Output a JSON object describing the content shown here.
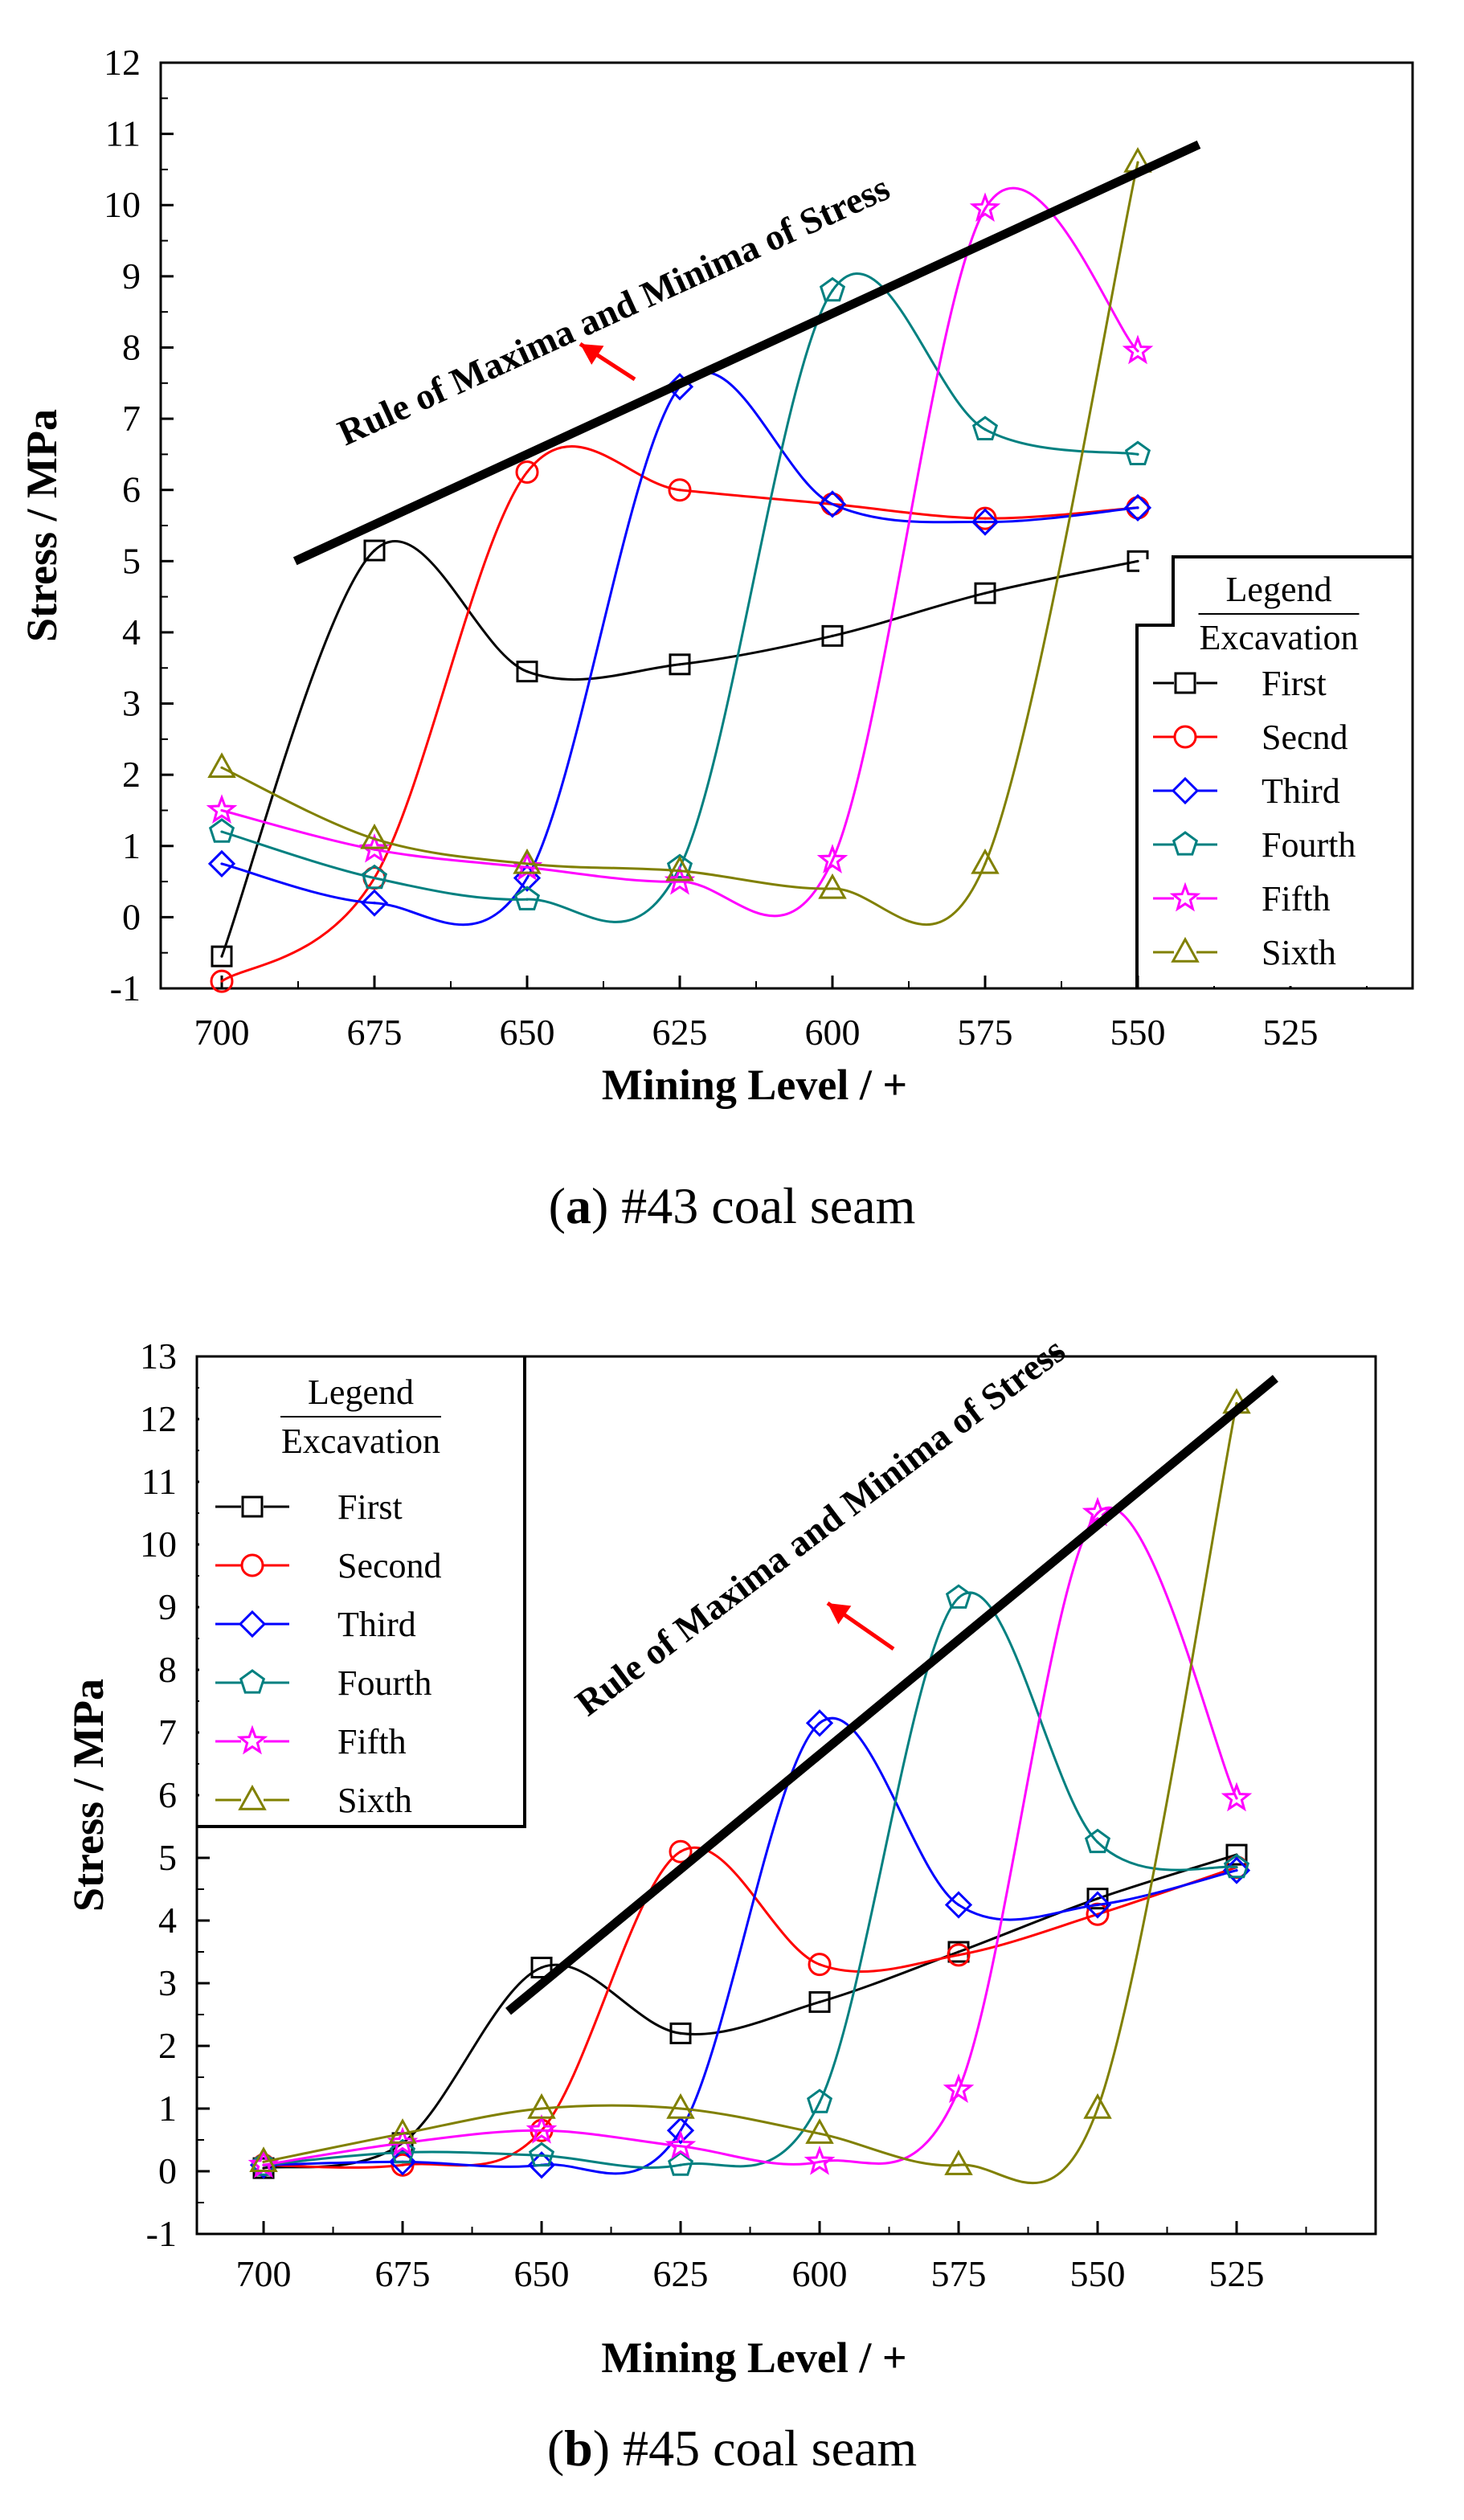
{
  "colors": {
    "First": "#000000",
    "Second": "#ff0000",
    "Third": "#0000ff",
    "Fourth": "#008080",
    "Fifth": "#ff00ff",
    "Sixth": "#808000",
    "arrow": "#ff0000"
  },
  "chart_data": [
    {
      "type": "line",
      "panel": "a",
      "caption_prefix": "(",
      "caption_letter": "a",
      "caption_rest": ") #43 coal seam",
      "xlabel": "Mining Level / +",
      "ylabel": "Stress  / MPa",
      "xlim": [
        710,
        505
      ],
      "ylim": [
        -1,
        12
      ],
      "xticks": [
        700,
        675,
        650,
        625,
        600,
        575,
        550,
        525
      ],
      "yticks": [
        -1,
        0,
        1,
        2,
        3,
        4,
        5,
        6,
        7,
        8,
        9,
        10,
        11,
        12
      ],
      "trend_label": "Rule of Maxima and Minima of Stress",
      "trend_line": {
        "x": [
          688,
          540
        ],
        "y": [
          5.0,
          10.85
        ]
      },
      "legend_position": "bottom-right",
      "legend_title": "Legend",
      "legend_subtitle": "Excavation",
      "series": [
        {
          "name": "First",
          "label": "First",
          "marker": "square",
          "x": [
            700,
            675,
            650,
            625,
            600,
            575,
            550
          ],
          "values": [
            -0.55,
            5.15,
            3.45,
            3.55,
            3.95,
            4.55,
            5.0
          ]
        },
        {
          "name": "Second",
          "label": "Secnd",
          "marker": "circle",
          "x": [
            700,
            675,
            650,
            625,
            600,
            575,
            550
          ],
          "values": [
            -0.9,
            0.55,
            6.25,
            6.0,
            5.8,
            5.6,
            5.75
          ]
        },
        {
          "name": "Third",
          "label": "Third",
          "marker": "diamond",
          "x": [
            700,
            675,
            650,
            625,
            600,
            575,
            550
          ],
          "values": [
            0.75,
            0.2,
            0.55,
            7.45,
            5.8,
            5.55,
            5.75
          ]
        },
        {
          "name": "Fourth",
          "label": "Fourth",
          "marker": "pentagon",
          "x": [
            700,
            675,
            650,
            625,
            600,
            575,
            550
          ],
          "values": [
            1.2,
            0.55,
            0.25,
            0.7,
            8.8,
            6.85,
            6.5
          ]
        },
        {
          "name": "Fifth",
          "label": "Fifth",
          "marker": "star",
          "x": [
            700,
            675,
            650,
            625,
            600,
            575,
            550
          ],
          "values": [
            1.5,
            0.95,
            0.7,
            0.5,
            0.8,
            9.95,
            7.95
          ]
        },
        {
          "name": "Sixth",
          "label": "Sixth",
          "marker": "triangle",
          "x": [
            700,
            675,
            650,
            625,
            600,
            575,
            550
          ],
          "values": [
            2.1,
            1.1,
            0.75,
            0.65,
            0.4,
            0.75,
            10.6
          ]
        }
      ]
    },
    {
      "type": "line",
      "panel": "b",
      "caption_prefix": "(",
      "caption_letter": "b",
      "caption_rest": ") #45 coal seam",
      "xlabel": "Mining Level / +",
      "ylabel": "Stress  / MPa",
      "xlim": [
        712,
        500
      ],
      "ylim": [
        -1,
        13
      ],
      "xticks": [
        700,
        675,
        650,
        625,
        600,
        575,
        550,
        525
      ],
      "yticks": [
        -1,
        0,
        1,
        2,
        3,
        4,
        5,
        6,
        7,
        8,
        9,
        10,
        11,
        12,
        13
      ],
      "trend_label": "Rule of Maxima and Minima of Stress",
      "trend_line": {
        "x": [
          656,
          518
        ],
        "y": [
          2.55,
          12.65
        ]
      },
      "legend_position": "top-left",
      "legend_title": "Legend",
      "legend_subtitle": "Excavation",
      "series": [
        {
          "name": "First",
          "label": "First",
          "marker": "square",
          "x": [
            700,
            675,
            650,
            625,
            600,
            575,
            550,
            525
          ],
          "values": [
            0.05,
            0.45,
            3.25,
            2.2,
            2.7,
            3.5,
            4.35,
            5.05
          ]
        },
        {
          "name": "Second",
          "label": "Second",
          "marker": "circle",
          "x": [
            700,
            675,
            650,
            625,
            600,
            575,
            550,
            525
          ],
          "values": [
            0.1,
            0.1,
            0.65,
            5.1,
            3.3,
            3.45,
            4.1,
            4.85
          ]
        },
        {
          "name": "Third",
          "label": "Third",
          "marker": "diamond",
          "x": [
            700,
            675,
            650,
            625,
            600,
            575,
            550,
            525
          ],
          "values": [
            0.1,
            0.15,
            0.1,
            0.65,
            7.15,
            4.25,
            4.25,
            4.8
          ]
        },
        {
          "name": "Fourth",
          "label": "Fourth",
          "marker": "pentagon",
          "x": [
            700,
            675,
            650,
            625,
            600,
            575,
            550,
            525
          ],
          "values": [
            0.1,
            0.3,
            0.25,
            0.1,
            1.1,
            9.15,
            5.25,
            4.85
          ]
        },
        {
          "name": "Fifth",
          "label": "Fifth",
          "marker": "star",
          "x": [
            700,
            675,
            650,
            625,
            600,
            575,
            550,
            525
          ],
          "values": [
            0.1,
            0.45,
            0.65,
            0.4,
            0.15,
            1.3,
            10.5,
            5.95
          ]
        },
        {
          "name": "Sixth",
          "label": "Sixth",
          "marker": "triangle",
          "x": [
            700,
            675,
            650,
            625,
            600,
            575,
            550,
            525
          ],
          "values": [
            0.15,
            0.6,
            1.0,
            1.0,
            0.6,
            0.1,
            1.0,
            12.25
          ]
        }
      ]
    }
  ]
}
